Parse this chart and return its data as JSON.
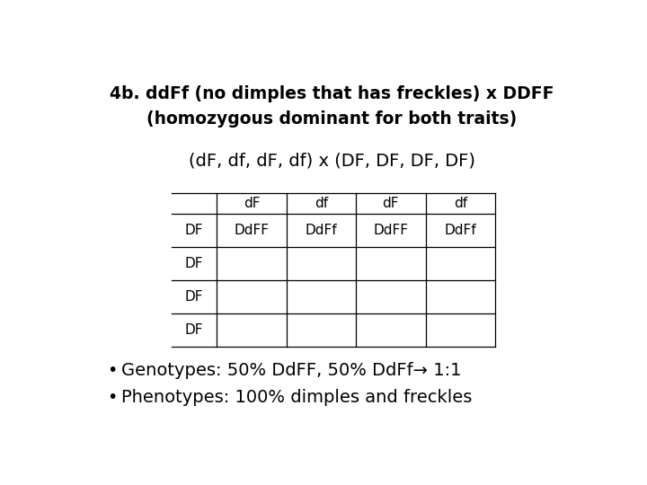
{
  "title_line1": "4b. ddFf (no dimples that has freckles) x DDFF",
  "title_line2": "(homozygous dominant for both traits)",
  "gametes_line": "(dF, df, dF, df) x (DF, DF, DF, DF)",
  "col_headers": [
    "dF",
    "df",
    "dF",
    "df"
  ],
  "row_headers": [
    "DF",
    "DF",
    "DF",
    "DF"
  ],
  "table_data": [
    [
      "DdFF",
      "DdFf",
      "DdFF",
      "DdFf"
    ],
    [
      "",
      "",
      "",
      ""
    ],
    [
      "",
      "",
      "",
      ""
    ],
    [
      "",
      "",
      "",
      ""
    ]
  ],
  "bullet1": "Genotypes: 50% DdFF, 50% DdFf→ 1:1",
  "bullet2": "Phenotypes: 100% dimples and freckles",
  "bg_color": "#ffffff",
  "text_color": "#000000",
  "title_fontsize": 13.5,
  "gametes_fontsize": 14,
  "table_fontsize": 11,
  "bullet_fontsize": 14
}
